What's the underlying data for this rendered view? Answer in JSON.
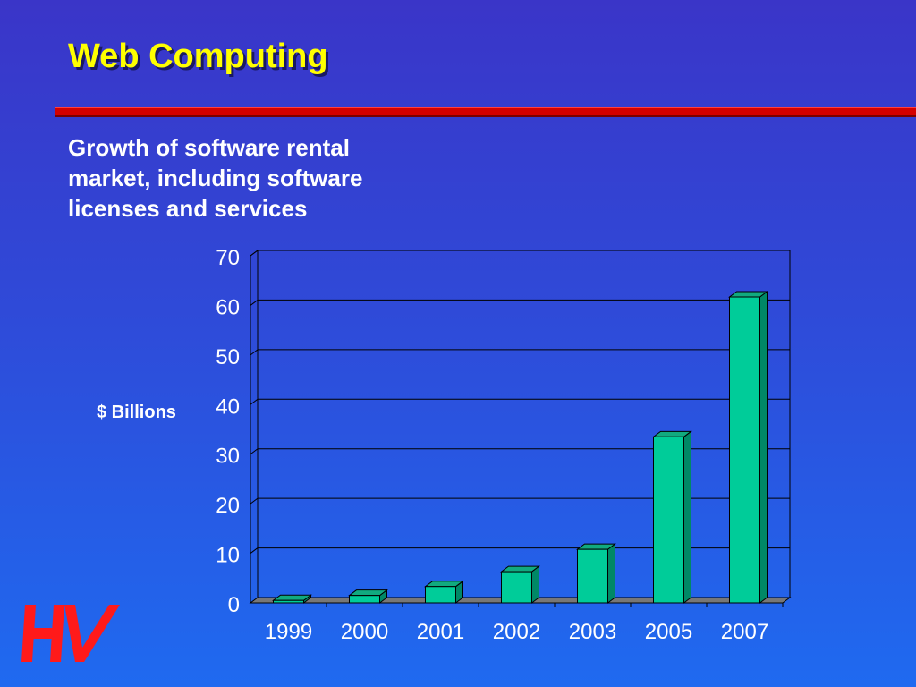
{
  "slide": {
    "title": "Web Computing",
    "subtitle": "Growth of software rental market, including software licenses and services",
    "logo_text": "HV"
  },
  "colors": {
    "title": "#ffff00",
    "rule": "#d40000",
    "bar_front": "#00cc99",
    "bar_side": "#008866",
    "bar_top": "#11aa7f",
    "floor": "#777777",
    "logo": "#ff1a1a"
  },
  "chart_data": {
    "type": "bar",
    "categories": [
      "1999",
      "2000",
      "2001",
      "2002",
      "2003",
      "2005",
      "2007"
    ],
    "values": [
      0.5,
      1.5,
      3.3,
      6.3,
      10.8,
      33.5,
      61.7
    ],
    "ylabel": "$ Billions",
    "xlabel": "",
    "ylim": [
      0,
      70
    ],
    "yticks": [
      0,
      10,
      20,
      30,
      40,
      50,
      60,
      70
    ],
    "grid": true,
    "style": "3d-column"
  }
}
